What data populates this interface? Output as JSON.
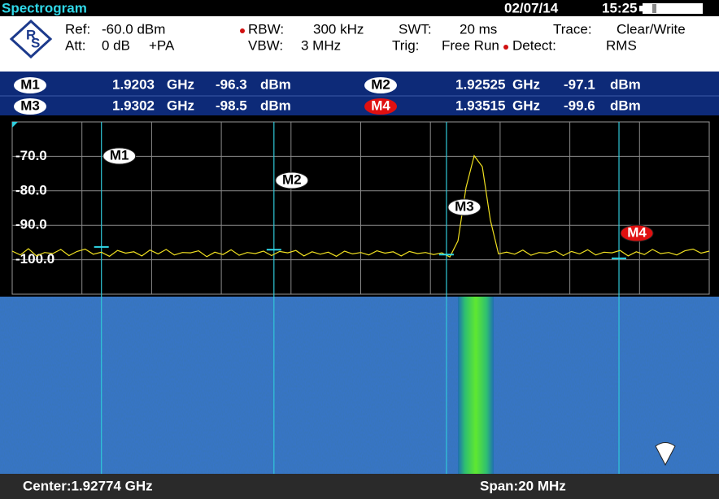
{
  "header": {
    "title": "Spectrogram",
    "date": "02/07/14",
    "time": "15:25"
  },
  "settings": {
    "rows": [
      [
        "Ref:",
        "-60.0 dBm",
        "RBW:",
        "300 kHz",
        "SWT:",
        "20 ms",
        "Trace:",
        "Clear/Write"
      ],
      [
        "Att:",
        "0 dB",
        "+PA",
        "VBW:",
        "3 MHz",
        "Trig:",
        "Free Run",
        "Detect:",
        "RMS"
      ]
    ]
  },
  "markers": [
    {
      "label": "M1",
      "frequency": 1.9203,
      "frequency_unit": "GHz",
      "level": -96.3,
      "level_unit": "dBm"
    },
    {
      "label": "M2",
      "frequency": 1.92525,
      "frequency_unit": "GHz",
      "level": -97.1,
      "level_unit": "dBm"
    },
    {
      "label": "M3",
      "frequency": 1.9302,
      "frequency_unit": "GHz",
      "level": -98.5,
      "level_unit": "dBm"
    },
    {
      "label": "M4",
      "frequency": 1.93515,
      "frequency_unit": "GHz",
      "level": -99.6,
      "level_unit": "dBm"
    }
  ],
  "spectrum": {
    "xlim": [
      1.91774,
      1.93774
    ],
    "ylim": [
      -110,
      -60
    ],
    "yticks": [
      {
        "value": -70,
        "label": "-70.0"
      },
      {
        "value": -80,
        "label": "-80.0"
      },
      {
        "value": -90,
        "label": "-90.0"
      },
      {
        "value": -100,
        "label": "-100.0"
      }
    ],
    "trace": [
      -97.5,
      -98.6,
      -96.8,
      -98.9,
      -97.9,
      -98.2,
      -97.0,
      -98.8,
      -97.6,
      -96.9,
      -98.4,
      -97.8,
      -99.0,
      -97.3,
      -98.1,
      -97.7,
      -98.9,
      -97.2,
      -98.3,
      -97.0,
      -98.6,
      -97.9,
      -98.0,
      -97.4,
      -99.1,
      -97.8,
      -98.5,
      -97.1,
      -98.7,
      -97.9,
      -98.2,
      -97.5,
      -98.8,
      -97.6,
      -98.0,
      -97.3,
      -98.9,
      -97.7,
      -98.4,
      -97.8,
      -99.0,
      -97.5,
      -98.3,
      -97.9,
      -98.6,
      -97.4,
      -98.1,
      -97.7,
      -98.9,
      -97.6,
      -98.2,
      -97.9,
      -98.5,
      -98.0,
      -99.2,
      -94.5,
      -79.0,
      -69.8,
      -73.0,
      -88.5,
      -98.3,
      -97.8,
      -98.4,
      -97.2,
      -98.7,
      -97.9,
      -98.1,
      -97.4,
      -98.8,
      -97.6,
      -98.3,
      -97.1,
      -98.6,
      -97.8,
      -98.0,
      -97.3,
      -98.9,
      -97.7,
      -98.5,
      -97.0,
      -98.2,
      -97.9,
      -98.6,
      -97.4,
      -96.9,
      -98.1,
      -97.5
    ]
  },
  "footer": {
    "center": "Center:1.92774 GHz",
    "span": "Span:20 MHz"
  }
}
